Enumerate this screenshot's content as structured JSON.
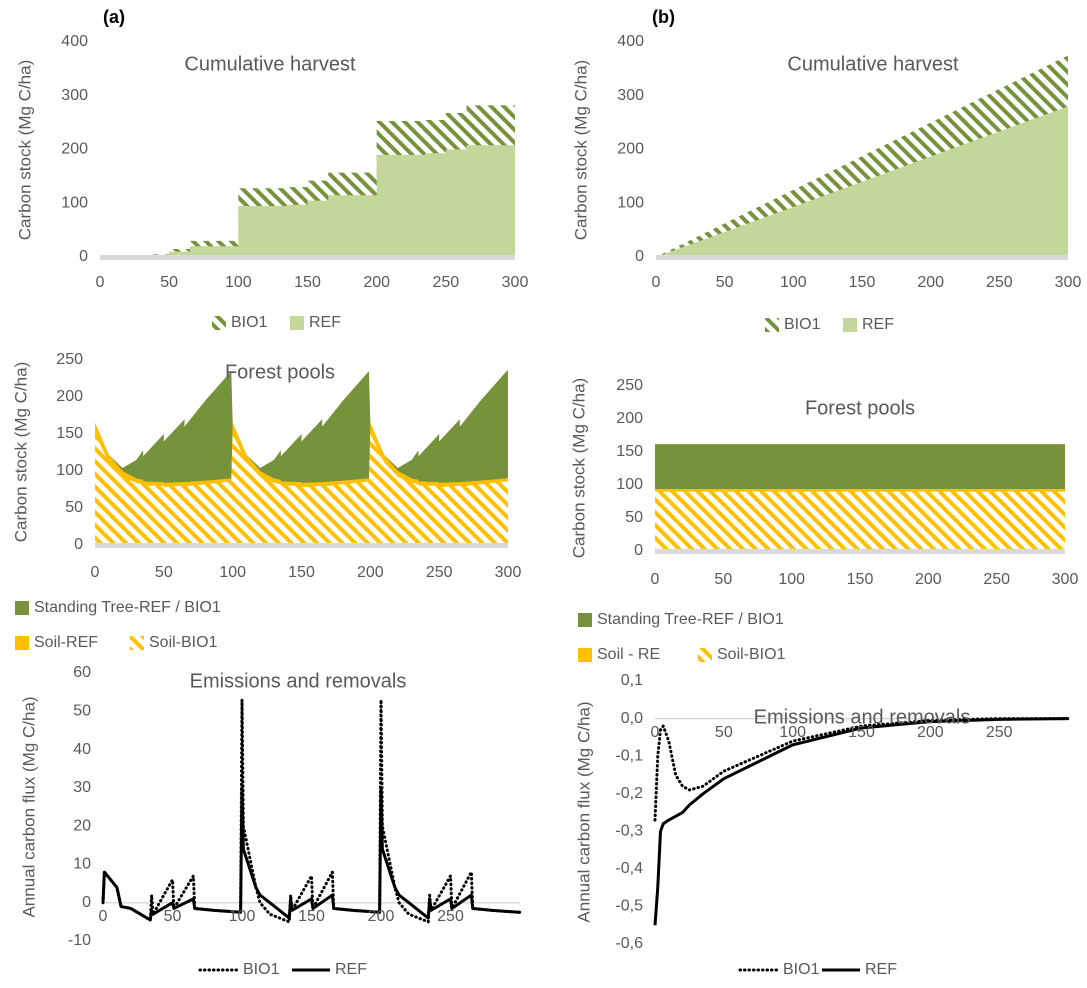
{
  "panel_labels": [
    "(a)",
    "(b)"
  ],
  "chart_data": [
    {
      "type": "area",
      "title": "Cumulative harvest",
      "y_label": "Carbon stock (Mg C/ha)",
      "x": [
        0,
        35,
        35,
        50,
        50,
        65,
        65,
        100,
        100,
        135,
        135,
        150,
        150,
        165,
        165,
        200,
        200,
        235,
        235,
        250,
        250,
        265,
        265,
        300
      ],
      "series": [
        {
          "name": "BIO1",
          "color": "#76933c",
          "pattern": "hatch",
          "values": [
            0,
            0,
            5,
            5,
            15,
            15,
            30,
            30,
            128,
            128,
            130,
            130,
            142,
            142,
            157,
            157,
            253,
            253,
            255,
            255,
            268,
            268,
            282,
            282
          ]
        },
        {
          "name": "REF",
          "color": "#c4d79b",
          "values": [
            0,
            0,
            3,
            3,
            10,
            10,
            20,
            20,
            95,
            95,
            97,
            97,
            105,
            105,
            115,
            115,
            190,
            190,
            193,
            193,
            200,
            200,
            208,
            208
          ]
        }
      ],
      "xlim": [
        0,
        300
      ],
      "xticks": [
        0,
        50,
        100,
        150,
        200,
        250,
        300
      ],
      "ylim": [
        0,
        400
      ],
      "yticks": [
        0,
        100,
        200,
        300,
        400
      ]
    },
    {
      "type": "area",
      "title": "Cumulative harvest",
      "y_label": "Carbon stock (Mg C/ha)",
      "x": [
        0,
        100,
        200,
        300
      ],
      "series": [
        {
          "name": "BIO1",
          "color": "#76933c",
          "pattern": "hatch",
          "values": [
            0,
            125,
            250,
            375
          ]
        },
        {
          "name": "REF",
          "color": "#c4d79b",
          "values": [
            0,
            93,
            187,
            280
          ]
        }
      ],
      "xlim": [
        0,
        300
      ],
      "xticks": [
        0,
        50,
        100,
        150,
        200,
        250,
        300
      ],
      "ylim": [
        0,
        400
      ],
      "yticks": [
        0,
        100,
        200,
        300,
        400
      ]
    },
    {
      "type": "area",
      "title": "Forest pools",
      "y_label": "Carbon stock (Mg C/ha)",
      "x": [
        0,
        10,
        20,
        30,
        35,
        35,
        50,
        50,
        65,
        65,
        80,
        99,
        100,
        110,
        120,
        130,
        135,
        135,
        150,
        150,
        165,
        165,
        180,
        199,
        200,
        210,
        220,
        230,
        235,
        235,
        250,
        250,
        265,
        265,
        280,
        299,
        300
      ],
      "series": [
        {
          "name": "Standing Tree-REF / BIO1",
          "color": "#76933c",
          "values": [
            165,
            122,
            104,
            115,
            128,
            120,
            150,
            140,
            170,
            160,
            195,
            235,
            165,
            122,
            104,
            115,
            128,
            120,
            150,
            140,
            170,
            160,
            195,
            235,
            165,
            122,
            104,
            115,
            128,
            120,
            150,
            140,
            170,
            160,
            195,
            235,
            236
          ]
        },
        {
          "name": "Soil-REF",
          "color": "#ffc000",
          "values": [
            165,
            122,
            100,
            90,
            88,
            86,
            85,
            84,
            85,
            85,
            87,
            90,
            165,
            122,
            100,
            90,
            88,
            86,
            85,
            84,
            85,
            85,
            87,
            90,
            165,
            122,
            100,
            90,
            88,
            86,
            85,
            84,
            85,
            85,
            87,
            90,
            92
          ]
        },
        {
          "name": "Soil-BIO1",
          "color": "#ffc000",
          "pattern": "hatch",
          "values": [
            150,
            112,
            92,
            84,
            82,
            80,
            80,
            78,
            80,
            79,
            82,
            86,
            150,
            112,
            92,
            84,
            82,
            80,
            80,
            78,
            80,
            79,
            82,
            86,
            150,
            112,
            92,
            84,
            82,
            80,
            80,
            78,
            80,
            79,
            82,
            86,
            88
          ]
        }
      ],
      "xlim": [
        0,
        300
      ],
      "xticks": [
        0,
        50,
        100,
        150,
        200,
        250,
        300
      ],
      "ylim": [
        0,
        250
      ],
      "yticks": [
        0,
        50,
        100,
        150,
        200,
        250
      ]
    },
    {
      "type": "area",
      "title": "Forest pools",
      "y_label": "Carbon stock (Mg C/ha)",
      "x": [
        0,
        300
      ],
      "series": [
        {
          "name": "Standing Tree-REF / BIO1",
          "color": "#76933c",
          "values": [
            162,
            162
          ]
        },
        {
          "name": "Soil - RE",
          "color": "#ffc000",
          "values": [
            94,
            94
          ]
        },
        {
          "name": "Soil-BIO1",
          "color": "#ffc000",
          "pattern": "hatch",
          "values": [
            90,
            90
          ]
        }
      ],
      "xlim": [
        0,
        300
      ],
      "xticks": [
        0,
        50,
        100,
        150,
        200,
        250,
        300
      ],
      "ylim": [
        0,
        250
      ],
      "yticks": [
        0,
        50,
        100,
        150,
        200,
        250
      ]
    },
    {
      "type": "line",
      "title": "Emissions and removals",
      "y_label": "Annual carbon flux (Mg C/ha)",
      "x": [
        0,
        1,
        10,
        13,
        20,
        34,
        35,
        36,
        50,
        51,
        65,
        66,
        80,
        99,
        100,
        101,
        110,
        113,
        120,
        134,
        135,
        136,
        150,
        151,
        165,
        166,
        180,
        199,
        200,
        201,
        210,
        213,
        220,
        234,
        235,
        236,
        250,
        251,
        265,
        266,
        280,
        299,
        300
      ],
      "series": [
        {
          "name": "BIO1",
          "color": "#000000",
          "dash": "dotted",
          "values": [
            0,
            8,
            4,
            -1,
            -1.5,
            -4.5,
            2,
            -3,
            6,
            -1.5,
            7,
            -1.5,
            -2,
            -2.5,
            53,
            20,
            4,
            0,
            -3,
            -5,
            2,
            -2,
            7,
            -1.5,
            8,
            -1.5,
            -2,
            -2.5,
            53,
            20,
            4,
            0,
            -3,
            -5,
            2,
            -2,
            7,
            -1.5,
            8,
            -1.5,
            -2,
            -2.5,
            -2.5
          ]
        },
        {
          "name": "REF",
          "color": "#000000",
          "values": [
            0,
            8,
            4,
            -1,
            -1.5,
            -4.5,
            -2,
            -3,
            0,
            -1.5,
            1,
            -1.5,
            -2,
            -2.5,
            30,
            14,
            4,
            2,
            0,
            -4,
            1,
            -2,
            1,
            -1.5,
            2,
            -1.5,
            -2,
            -2.5,
            30,
            14,
            4,
            2,
            0,
            -4,
            1,
            -2,
            1,
            -1.5,
            2,
            -1.5,
            -2,
            -2.5,
            -2.5
          ]
        }
      ],
      "xlim": [
        0,
        300
      ],
      "xticks": [
        0,
        50,
        100,
        150,
        200,
        250
      ],
      "ylim": [
        -10,
        60
      ],
      "yticks": [
        -10,
        0,
        10,
        20,
        30,
        40,
        50,
        60
      ]
    },
    {
      "type": "line",
      "title": "Emissions and removals",
      "y_label": "Annual carbon flux (Mg C/ha)",
      "x": [
        0,
        2,
        4,
        6,
        10,
        15,
        20,
        25,
        35,
        50,
        100,
        150,
        200,
        250,
        300
      ],
      "series": [
        {
          "name": "BIO1",
          "color": "#000000",
          "dash": "dotted",
          "values": [
            -0.27,
            -0.1,
            -0.03,
            -0.02,
            -0.06,
            -0.15,
            -0.18,
            -0.19,
            -0.18,
            -0.14,
            -0.06,
            -0.02,
            -0.005,
            0,
            0
          ]
        },
        {
          "name": "REF",
          "color": "#000000",
          "values": [
            -0.55,
            -0.45,
            -0.3,
            -0.28,
            -0.27,
            -0.26,
            -0.25,
            -0.23,
            -0.2,
            -0.16,
            -0.07,
            -0.025,
            -0.008,
            -0.002,
            0
          ]
        }
      ],
      "xlim": [
        0,
        300
      ],
      "xticks": [
        0,
        50,
        100,
        150,
        200,
        250
      ],
      "ylim": [
        -0.6,
        0.1
      ],
      "yticks": [
        {
          "value": -0.6,
          "label": "-0,6"
        },
        {
          "value": -0.5,
          "label": "-0,5"
        },
        {
          "value": -0.4,
          "label": "-0,4"
        },
        {
          "value": -0.3,
          "label": "-0,3"
        },
        {
          "value": -0.2,
          "label": "-0,2"
        },
        {
          "value": -0.1,
          "label": "-0,1"
        },
        {
          "value": 0,
          "label": "0,0"
        },
        {
          "value": 0.1,
          "label": "0,1"
        }
      ]
    }
  ]
}
